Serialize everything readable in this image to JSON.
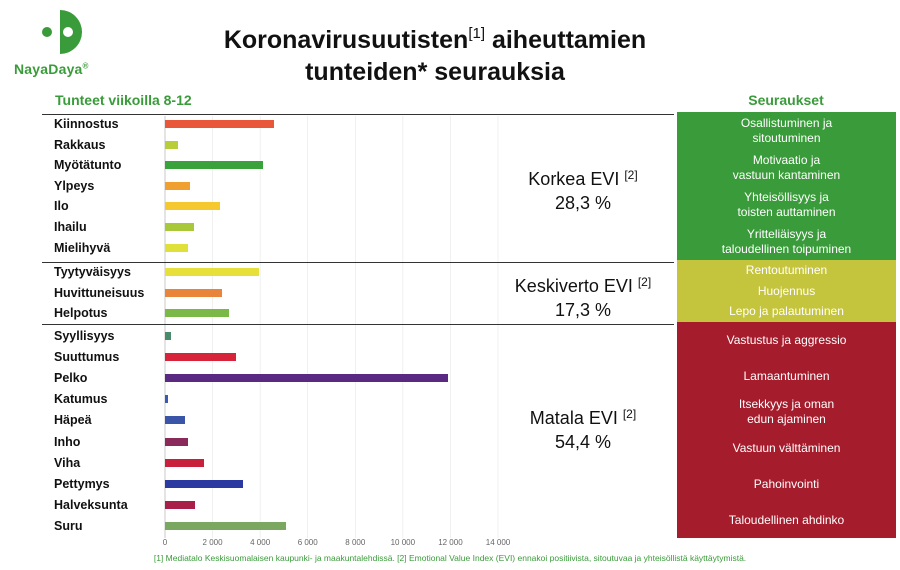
{
  "logo": {
    "name": "NayaDaya",
    "mark": "®"
  },
  "title": {
    "line1_a": "Koronavirusuutisten",
    "line1_ref": "[1]",
    "line1_b": " aiheuttamien",
    "line2": "tunteiden* seurauksia"
  },
  "headers": {
    "left": "Tunteet viikoilla 8-12",
    "right": "Seuraukset"
  },
  "colors": {
    "green": "#3a9b3a",
    "yellow_box": "#c5c43d",
    "red_box": "#a51c2c"
  },
  "chart_data": {
    "type": "bar",
    "orientation": "horizontal",
    "xlim": [
      0,
      14000
    ],
    "xticks": [
      0,
      2000,
      4000,
      6000,
      8000,
      10000,
      12000,
      14000
    ],
    "xtick_labels": [
      "0",
      "2 000",
      "4 000",
      "6 000",
      "8 000",
      "10 000",
      "12 000",
      "14 000"
    ],
    "groups": [
      {
        "name": "Korkea EVI",
        "ref": "[2]",
        "value_label": "28,3 %",
        "categories": [
          {
            "label": "Kiinnostus",
            "value": 4600,
            "color": "#e8573a"
          },
          {
            "label": "Rakkaus",
            "value": 550,
            "color": "#b9cc3a"
          },
          {
            "label": "Myötätunto",
            "value": 4100,
            "color": "#3aa23a"
          },
          {
            "label": "Ylpeys",
            "value": 1050,
            "color": "#f0a030"
          },
          {
            "label": "Ilo",
            "value": 2300,
            "color": "#f5c830"
          },
          {
            "label": "Ihailu",
            "value": 1200,
            "color": "#a8c83a"
          },
          {
            "label": "Mielihyvä",
            "value": 950,
            "color": "#e0e03a"
          }
        ],
        "consequences": [
          [
            "Osallistuminen ja",
            "sitoutuminen"
          ],
          [
            "Motivaatio ja",
            "vastuun kantaminen"
          ],
          [
            "Yhteisöllisyys ja",
            "toisten auttaminen"
          ],
          [
            "Yritteliäisyys ja",
            "taloudellinen toipuminen"
          ]
        ]
      },
      {
        "name": "Keskiverto EVI",
        "ref": "[2]",
        "value_label": "17,3 %",
        "categories": [
          {
            "label": "Tyytyväisyys",
            "value": 3950,
            "color": "#e8e03a"
          },
          {
            "label": "Huvittuneisuus",
            "value": 2400,
            "color": "#e8853a"
          },
          {
            "label": "Helpotus",
            "value": 2700,
            "color": "#7ab848"
          }
        ],
        "consequences": [
          [
            "Rentoutuminen"
          ],
          [
            "Huojennus"
          ],
          [
            "Lepo ja palautuminen"
          ]
        ]
      },
      {
        "name": "Matala EVI",
        "ref": "[2]",
        "value_label": "54,4 %",
        "categories": [
          {
            "label": "Syyllisyys",
            "value": 250,
            "color": "#4a8a6a"
          },
          {
            "label": "Suuttumus",
            "value": 3000,
            "color": "#d8243a"
          },
          {
            "label": "Pelko",
            "value": 11900,
            "color": "#5a2a82"
          },
          {
            "label": "Katumus",
            "value": 120,
            "color": "#3a5ab0"
          },
          {
            "label": "Häpeä",
            "value": 850,
            "color": "#3a55a8"
          },
          {
            "label": "Inho",
            "value": 950,
            "color": "#8a2a5a"
          },
          {
            "label": "Viha",
            "value": 1650,
            "color": "#c8203a"
          },
          {
            "label": "Pettymys",
            "value": 3300,
            "color": "#2a3aa0"
          },
          {
            "label": "Halveksunta",
            "value": 1250,
            "color": "#a8204a"
          },
          {
            "label": "Suru",
            "value": 5100,
            "color": "#7aa860"
          }
        ],
        "consequences": [
          [
            "Vastustus ja aggressio"
          ],
          [
            "Lamaantuminen"
          ],
          [
            "Itsekkyys ja oman",
            "edun ajaminen"
          ],
          [
            "Vastuun välttäminen"
          ],
          [
            "Pahoinvointi"
          ],
          [
            "Taloudellinen ahdinko"
          ]
        ]
      }
    ]
  },
  "footnote": "[1] Mediatalo Keskisuomalaisen kaupunki- ja maakuntalehdissä. [2] Emotional Value Index (EVI) ennakoi positiivista, sitoutuvaa ja yhteisöllistä käyttäytymistä."
}
